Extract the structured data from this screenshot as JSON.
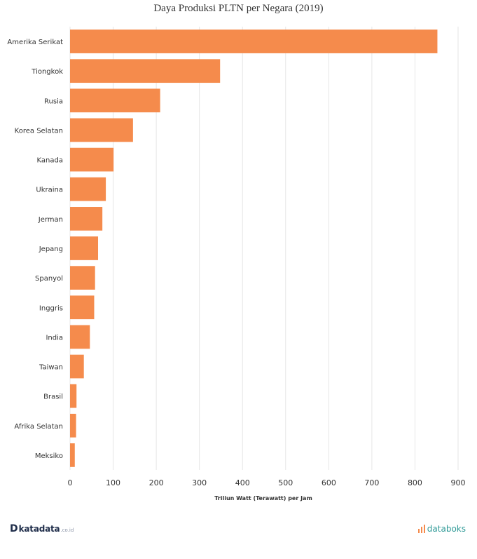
{
  "chart_data": {
    "type": "bar",
    "orientation": "horizontal",
    "title": "Daya Produksi PLTN per Negara (2019)",
    "xlabel": "Triliun Watt (Terawatt) per Jam",
    "ylabel": "",
    "categories": [
      "Amerika Serikat",
      "Tiongkok",
      "Rusia",
      "Korea Selatan",
      "Kanada",
      "Ukraina",
      "Jerman",
      "Jepang",
      "Spanyol",
      "Inggris",
      "India",
      "Taiwan",
      "Brasil",
      "Afrika Selatan",
      "Meksiko"
    ],
    "values": [
      852,
      348,
      209,
      146,
      101,
      83,
      75,
      65,
      58,
      56,
      46,
      32,
      15,
      14,
      11
    ],
    "xlim": [
      0,
      900
    ],
    "xticks": [
      0,
      100,
      200,
      300,
      400,
      500,
      600,
      700,
      800,
      900
    ],
    "grid": true,
    "bar_color": "#f58b4c",
    "legend": "none"
  },
  "footer": {
    "left_logo_mark": "D",
    "left_brand": "katadata",
    "left_brand_suffix": ".co.id",
    "right_brand": "databoks",
    "right_brand_color": "#2f9a97"
  }
}
